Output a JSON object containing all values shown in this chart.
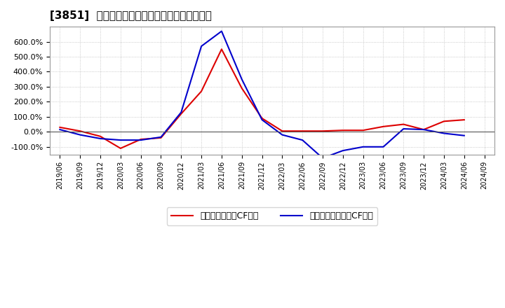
{
  "title": "[3851]  有利子負債キャッシュフロー比率の推移",
  "legend_op": "有利子負債営業CF比率",
  "legend_free": "有利子負債フリーCF比率",
  "color_op": "#dd0000",
  "color_free": "#0000cc",
  "background_color": "#ffffff",
  "plot_bg_color": "#ffffff",
  "grid_color": "#bbbbbb",
  "ylim": [
    -150,
    700
  ],
  "yticks": [
    -100,
    0,
    100,
    200,
    300,
    400,
    500,
    600
  ],
  "x_labels": [
    "2019/06",
    "2019/09",
    "2019/12",
    "2020/03",
    "2020/06",
    "2020/09",
    "2020/12",
    "2021/03",
    "2021/06",
    "2021/09",
    "2021/12",
    "2022/03",
    "2022/06",
    "2022/09",
    "2022/12",
    "2023/03",
    "2023/06",
    "2023/09",
    "2023/12",
    "2024/03",
    "2024/06",
    "2024/09"
  ],
  "op_values": [
    30,
    5,
    -30,
    -110,
    -50,
    -40,
    120,
    270,
    550,
    290,
    90,
    5,
    5,
    5,
    10,
    10,
    35,
    50,
    15,
    70,
    80,
    null
  ],
  "free_values": [
    15,
    -20,
    -45,
    -55,
    -55,
    -35,
    130,
    570,
    670,
    350,
    80,
    -20,
    -55,
    -175,
    -125,
    -100,
    -100,
    20,
    15,
    -10,
    -25,
    null
  ]
}
